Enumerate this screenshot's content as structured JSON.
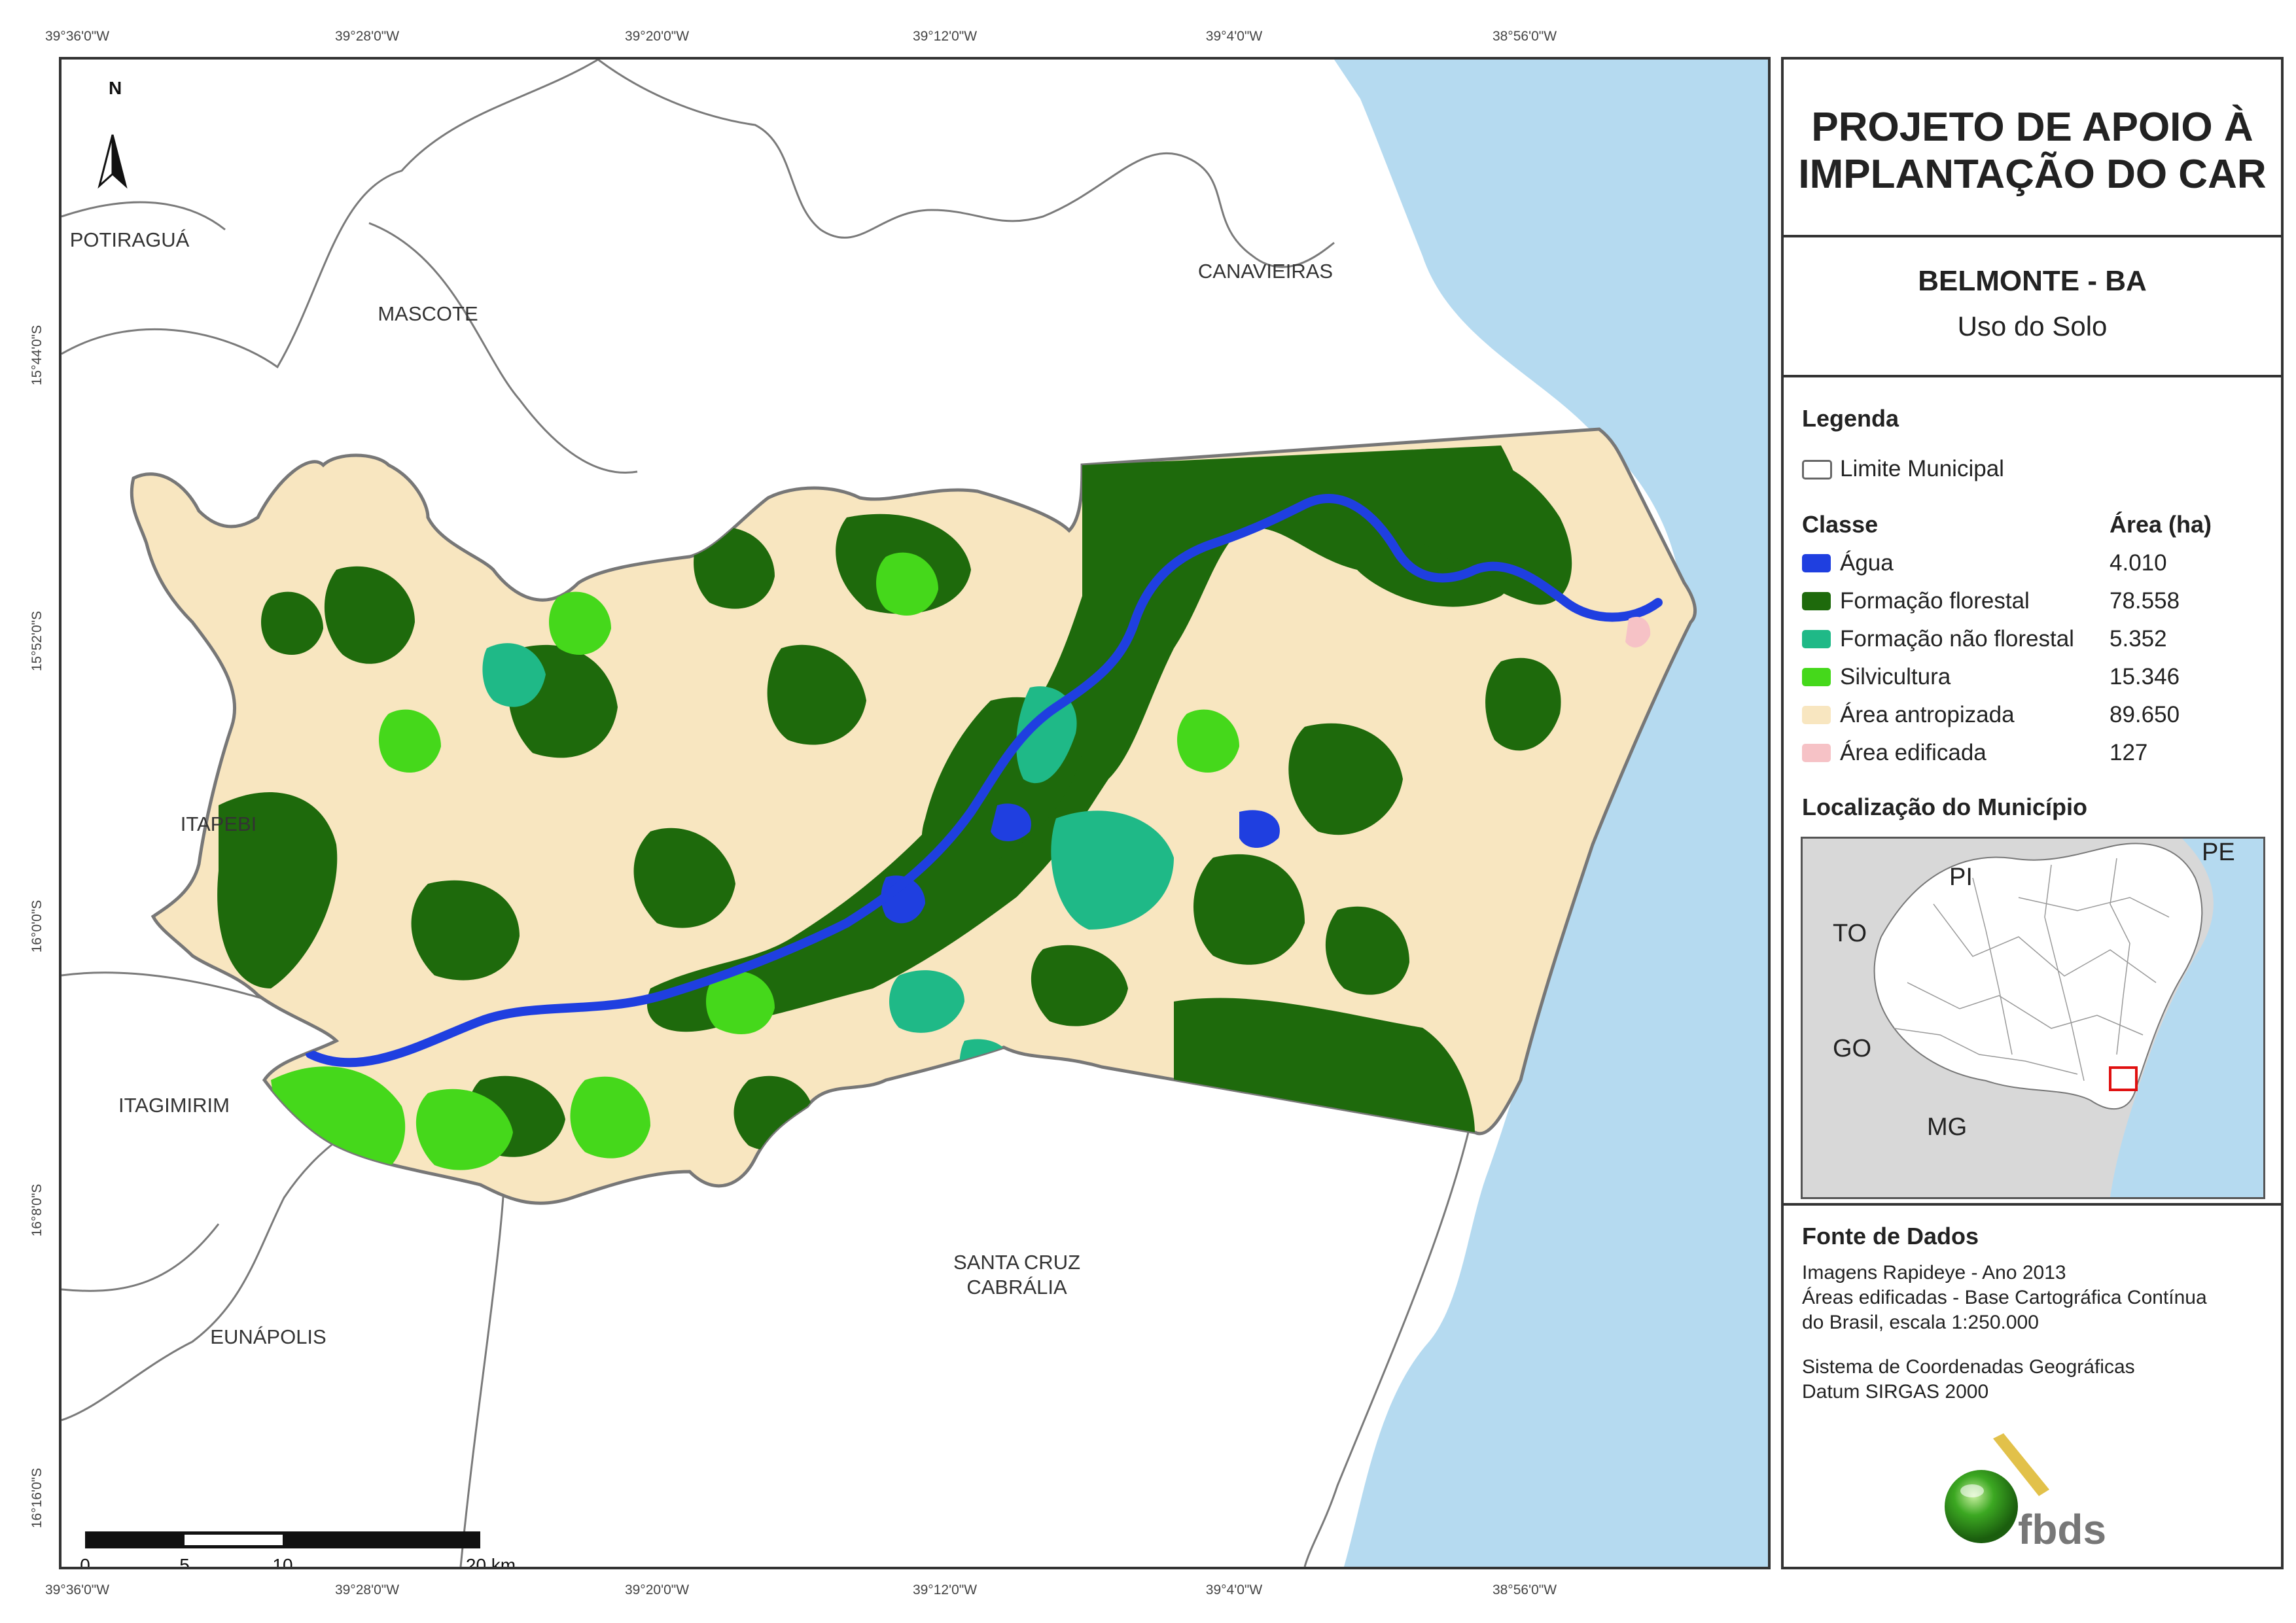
{
  "map": {
    "coord_labels_top": [
      "39°36'0\"W",
      "39°28'0\"W",
      "39°20'0\"W",
      "39°12'0\"W",
      "39°4'0\"W",
      "38°56'0\"W"
    ],
    "coord_labels_bottom": [
      "39°36'0\"W",
      "39°28'0\"W",
      "39°20'0\"W",
      "39°12'0\"W",
      "39°4'0\"W",
      "38°56'0\"W"
    ],
    "coord_labels_left": [
      "15°44'0\"S",
      "15°52'0\"S",
      "16°0'0\"S",
      "16°8'0\"S",
      "16°16'0\"S"
    ],
    "north_arrow_label": "N",
    "place_labels": {
      "potiragua": "POTIRAGUÁ",
      "mascote": "MASCOTE",
      "canavieiras": "CANAVIEIRAS",
      "itapebi": "ITAPEBI",
      "itagimirim": "ITAGIMIRIM",
      "eunapolis": "EUNÁPOLIS",
      "santa_cruz_1": "SANTA CRUZ",
      "santa_cruz_2": "CABRÁLIA"
    },
    "scale_bar": {
      "labels": [
        "0",
        "5",
        "10",
        "20 km"
      ]
    }
  },
  "panel": {
    "title_line1": "PROJETO DE APOIO À",
    "title_line2": "IMPLANTAÇÃO DO CAR",
    "municipality": "BELMONTE - BA",
    "theme": "Uso do Solo",
    "legend_heading": "Legenda",
    "boundary_label": "Limite Municipal",
    "class_heading": "Classe",
    "area_heading": "Área (ha)",
    "classes": [
      {
        "name": "Água",
        "area": "4.010",
        "color": "#1f3fe0"
      },
      {
        "name": "Formação florestal",
        "area": "78.558",
        "color": "#1e6a0c"
      },
      {
        "name": "Formação não florestal",
        "area": "5.352",
        "color": "#1fb987"
      },
      {
        "name": "Silvicultura",
        "area": "15.346",
        "color": "#45d81b"
      },
      {
        "name": "Área antropizada",
        "area": "89.650",
        "color": "#f8e6c0"
      },
      {
        "name": "Área edificada",
        "area": "127",
        "color": "#f6c2c6"
      }
    ],
    "location_heading": "Localização do Município",
    "inset_labels": {
      "pi": "PI",
      "pe": "PE",
      "to": "TO",
      "go": "GO",
      "mg": "MG"
    },
    "source_heading": "Fonte de Dados",
    "source_lines": {
      "l1": "Imagens Rapideye - Ano 2013",
      "l2": "Áreas edificadas - Base Cartográfica Contínua",
      "l3": "do Brasil, escala 1:250.000",
      "l4": "Sistema de Coordenadas Geográficas",
      "l5": "Datum SIRGAS 2000"
    },
    "logo_text": "fbds"
  },
  "colors": {
    "ocean": "#b5daf0",
    "boundary": "#777777",
    "frame": "#333333",
    "inset_bg": "#d8d8d8"
  }
}
